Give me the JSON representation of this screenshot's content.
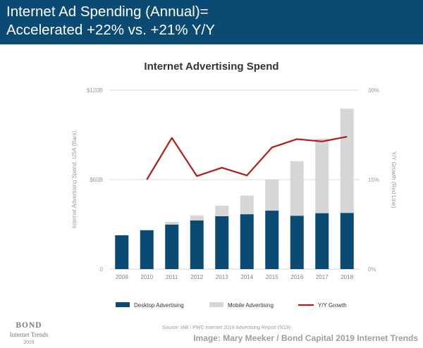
{
  "header": {
    "line1": "Internet Ad Spending (Annual)=",
    "line2": "Accelerated +22% vs. +21% Y/Y"
  },
  "chart_data": {
    "type": "bar",
    "title": "Internet Advertising Spend",
    "categories": [
      "2009",
      "2010",
      "2011",
      "2012",
      "2013",
      "2014",
      "2015",
      "2016",
      "2017",
      "2018"
    ],
    "series": [
      {
        "name": "Desktop Advertising",
        "kind": "bar",
        "stack": "spend",
        "color": "#0b4a73",
        "values": [
          22.7,
          26.0,
          29.9,
          32.6,
          35.5,
          36.8,
          39.2,
          35.8,
          37.5,
          37.7
        ]
      },
      {
        "name": "Mobile Advertising",
        "kind": "bar",
        "stack": "spend",
        "color": "#d6d6d6",
        "values": [
          0,
          0.6,
          1.8,
          3.4,
          7.1,
          12.5,
          20.7,
          36.6,
          50.0,
          69.9
        ]
      },
      {
        "name": "Y/Y Growth",
        "kind": "line",
        "axis": "right",
        "color": "#b31b1b",
        "values": [
          null,
          15,
          22,
          15.6,
          17,
          15.7,
          20.4,
          21.8,
          21.4,
          22.2
        ]
      }
    ],
    "y_left": {
      "label": "Internet Advertising Spend, USA (Bars)",
      "range": [
        0,
        120
      ],
      "ticks": [
        0,
        60,
        120
      ],
      "tick_labels": [
        "0",
        "$60B",
        "$120B"
      ]
    },
    "y_right": {
      "label": "Y/Y Growth (Red Line)",
      "range": [
        0,
        30
      ],
      "ticks": [
        0,
        15,
        30
      ],
      "tick_labels": [
        "0%",
        "15%",
        "30%"
      ]
    },
    "grid": true,
    "legend": [
      "Desktop Advertising",
      "Mobile Advertising",
      "Y/Y Growth"
    ]
  },
  "footer": {
    "logo_line1": "BOND",
    "logo_line2": "Internet Trends",
    "logo_line3": "2019",
    "source": "Source: IAB / PWC Internet 2018 Advertising Report (5/19).",
    "credit": "Image: Mary Meeker / Bond Capital 2019 Internet Trends"
  }
}
